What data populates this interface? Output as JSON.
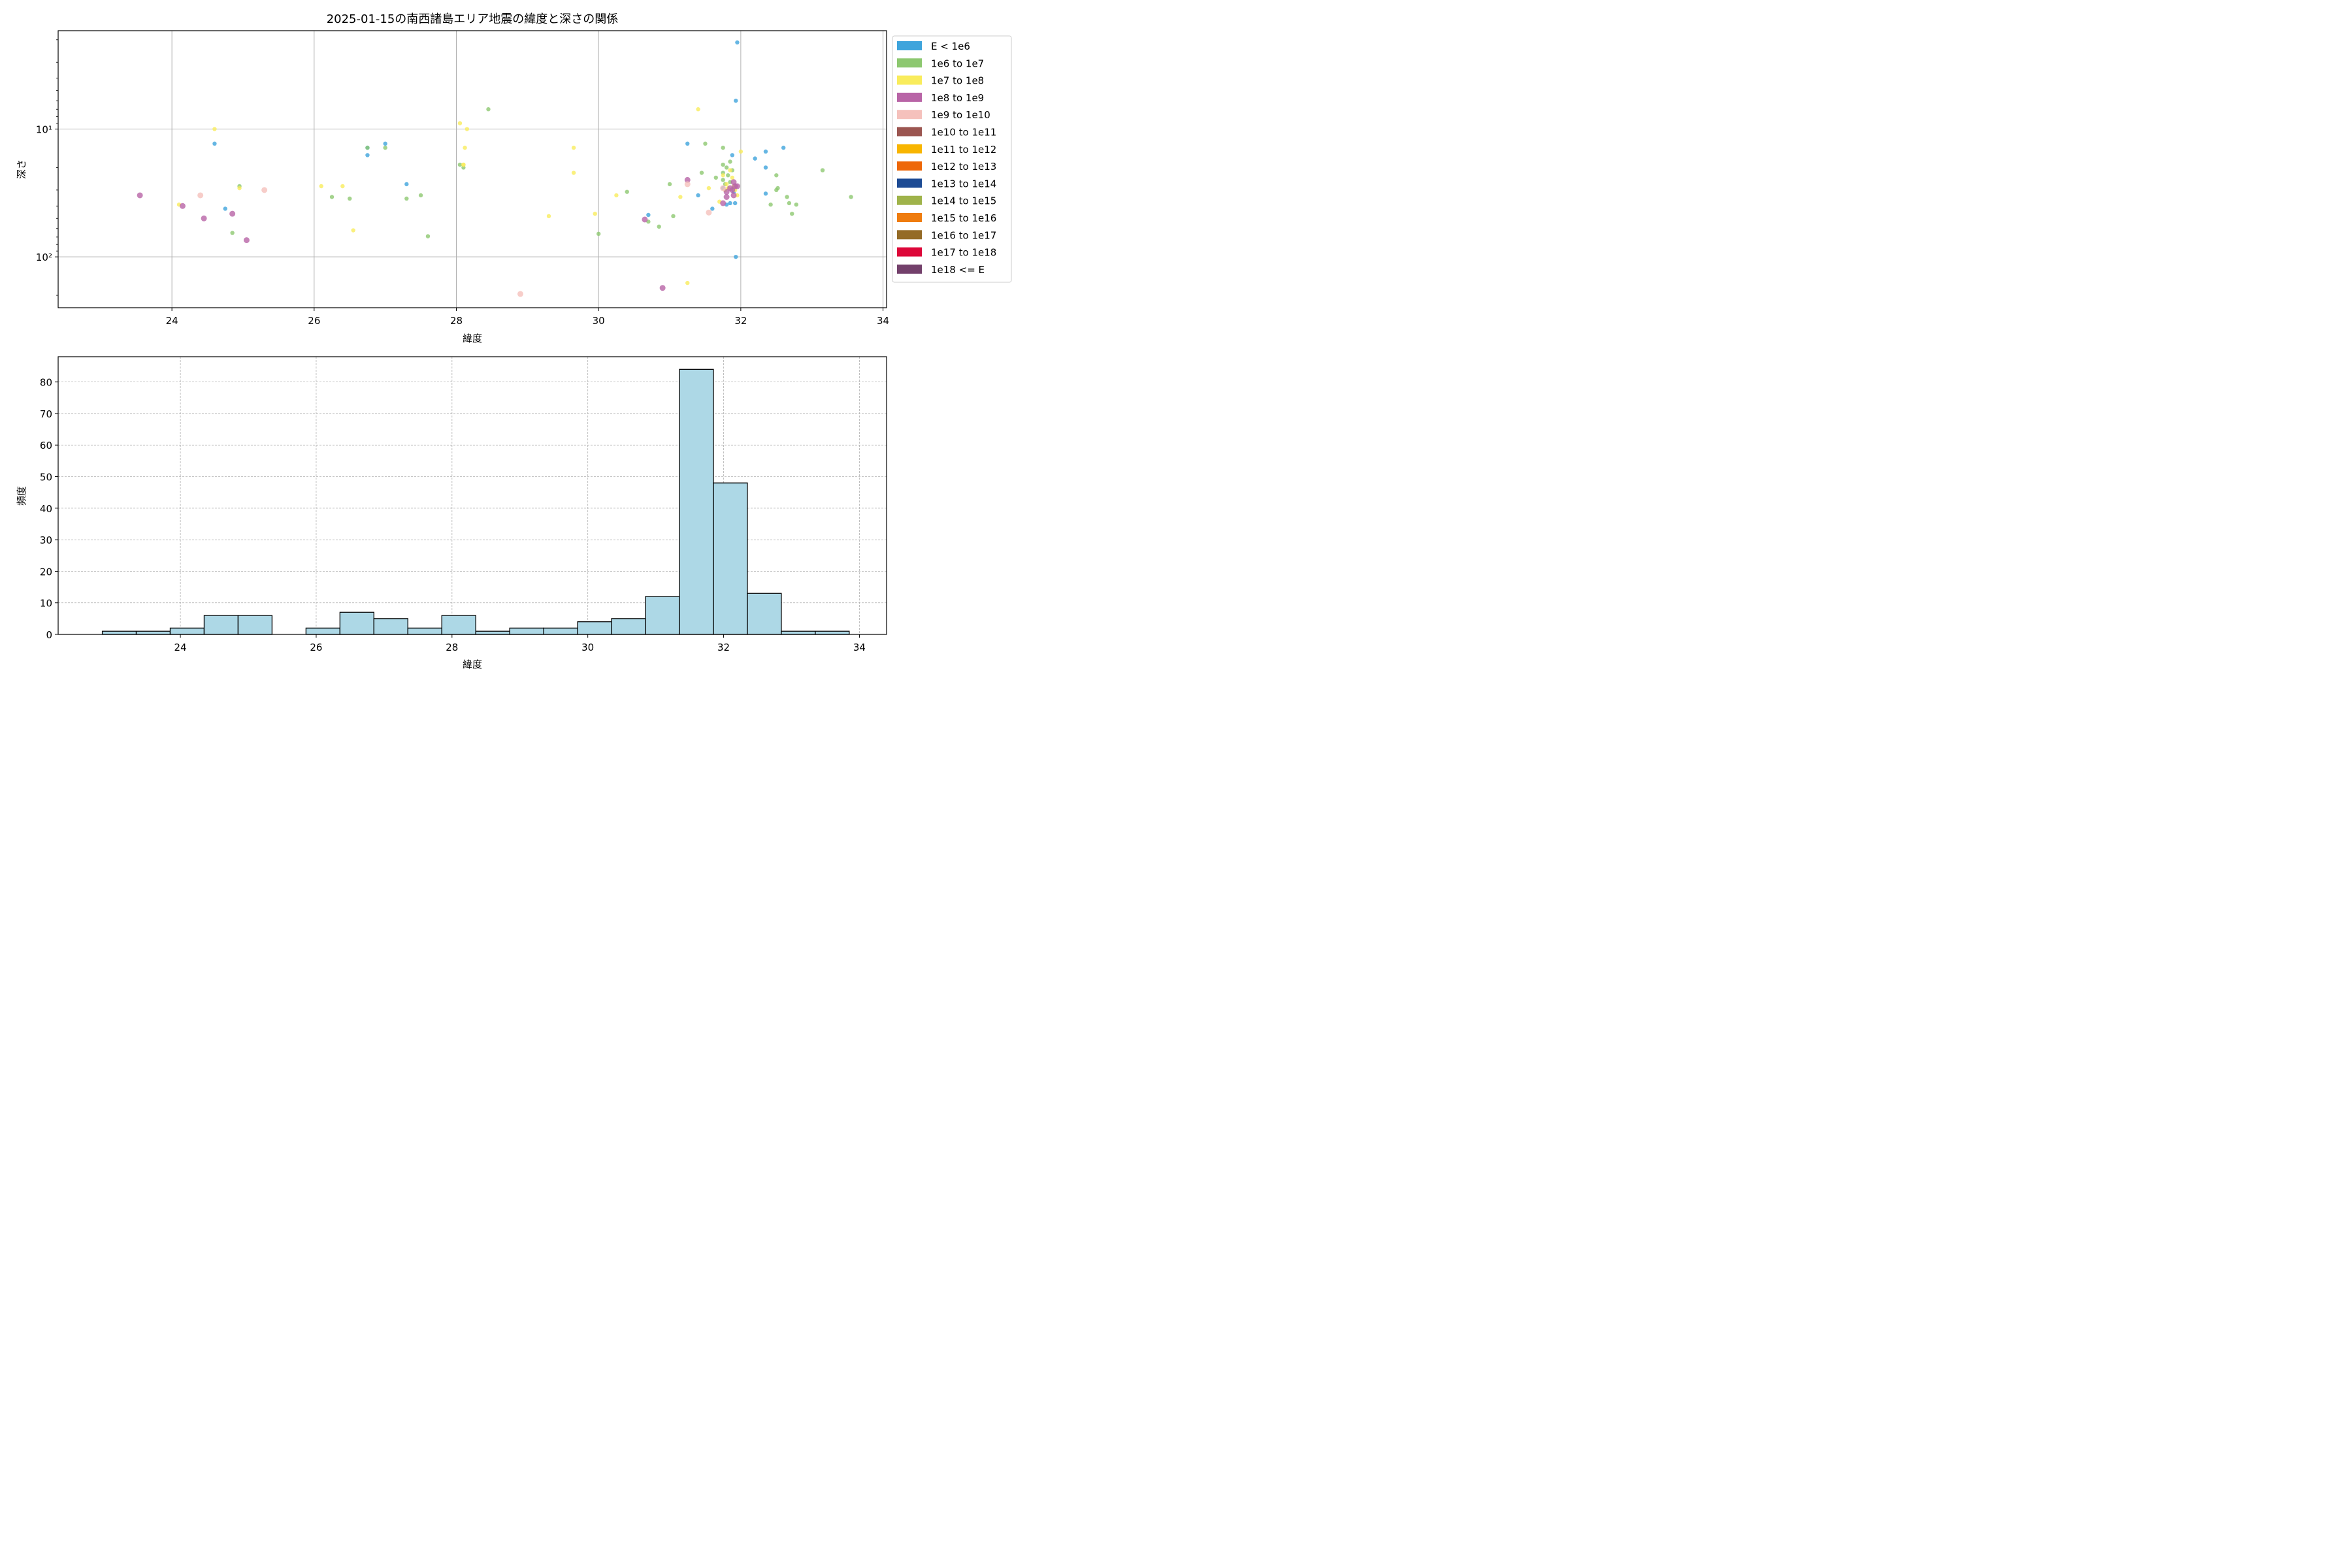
{
  "figure_title": "2025-01-15の南西諸島エリア地震の緯度と深さの関係",
  "chart_data": [
    {
      "type": "scatter",
      "title": "2025-01-15の南西諸島エリア地震の緯度と深さの関係",
      "xlabel": "緯度",
      "ylabel": "深さ",
      "xlim": [
        22.4,
        34.05
      ],
      "ylim": [
        250,
        1.7
      ],
      "y_scale": "log",
      "y_inverted": true,
      "grid": true,
      "x_ticks": [
        24,
        26,
        28,
        30,
        32,
        34
      ],
      "x_tick_labels": [
        "24",
        "26",
        "28",
        "30",
        "32",
        "34"
      ],
      "y_ticks": [
        10,
        100
      ],
      "y_tick_labels": [
        "10¹",
        "10²"
      ],
      "legend_position": "outside-right",
      "legend": [
        {
          "label": "E < 1e6",
          "color": "#3ea4dc"
        },
        {
          "label": "1e6 to 1e7",
          "color": "#8dc870"
        },
        {
          "label": "1e7 to 1e8",
          "color": "#f9ec5c"
        },
        {
          "label": "1e8 to 1e9",
          "color": "#b864a6"
        },
        {
          "label": "1e9 to 1e10",
          "color": "#f5c1bc"
        },
        {
          "label": "1e10 to 1e11",
          "color": "#9b5550"
        },
        {
          "label": "1e11 to 1e12",
          "color": "#f8b500"
        },
        {
          "label": "1e12 to 1e13",
          "color": "#ee6708"
        },
        {
          "label": "1e13 to 1e14",
          "color": "#1d4b94"
        },
        {
          "label": "1e14 to 1e15",
          "color": "#9fb34a"
        },
        {
          "label": "1e15 to 1e16",
          "color": "#ef7c0e"
        },
        {
          "label": "1e16 to 1e17",
          "color": "#946b26"
        },
        {
          "label": "1e17 to 1e18",
          "color": "#dd0739"
        },
        {
          "label": "1e18 <= E",
          "color": "#73406b"
        }
      ],
      "series": [
        {
          "name": "E < 1e6",
          "points": [
            [
              24.6,
              13
            ],
            [
              24.75,
              42
            ],
            [
              26.75,
              16
            ],
            [
              26.75,
              14
            ],
            [
              27.0,
              13
            ],
            [
              27.3,
              27
            ],
            [
              30.7,
              47
            ],
            [
              31.25,
              13
            ],
            [
              31.4,
              33
            ],
            [
              31.6,
              42
            ],
            [
              31.75,
              29
            ],
            [
              31.8,
              39
            ],
            [
              31.85,
              38
            ],
            [
              31.88,
              16
            ],
            [
              31.9,
              31
            ],
            [
              31.92,
              38
            ],
            [
              31.93,
              100
            ],
            [
              31.93,
              6
            ],
            [
              31.95,
              2.1
            ],
            [
              32.2,
              17
            ],
            [
              32.35,
              15
            ],
            [
              32.35,
              20
            ],
            [
              32.35,
              32
            ],
            [
              32.6,
              14
            ]
          ]
        },
        {
          "name": "1e6 to 1e7",
          "points": [
            [
              24.85,
              65
            ],
            [
              24.95,
              28
            ],
            [
              26.25,
              34
            ],
            [
              26.5,
              35
            ],
            [
              26.75,
              14
            ],
            [
              27.0,
              14
            ],
            [
              27.3,
              35
            ],
            [
              27.5,
              33
            ],
            [
              27.6,
              69
            ],
            [
              28.05,
              19
            ],
            [
              28.1,
              20
            ],
            [
              28.45,
              7
            ],
            [
              30.0,
              66
            ],
            [
              30.4,
              31
            ],
            [
              30.7,
              53
            ],
            [
              30.85,
              58
            ],
            [
              31.0,
              27
            ],
            [
              31.05,
              48
            ],
            [
              31.45,
              22
            ],
            [
              31.5,
              13
            ],
            [
              31.65,
              24
            ],
            [
              31.75,
              14
            ],
            [
              31.75,
              19
            ],
            [
              31.75,
              22
            ],
            [
              31.75,
              25
            ],
            [
              31.78,
              27
            ],
            [
              31.8,
              20
            ],
            [
              31.82,
              23
            ],
            [
              31.85,
              18
            ],
            [
              31.85,
              26
            ],
            [
              31.88,
              21
            ],
            [
              31.9,
              29
            ],
            [
              32.5,
              23
            ],
            [
              32.5,
              30
            ],
            [
              32.52,
              29
            ],
            [
              32.65,
              34
            ],
            [
              32.68,
              38
            ],
            [
              32.72,
              46
            ],
            [
              32.78,
              39
            ],
            [
              32.42,
              39
            ],
            [
              33.15,
              21
            ],
            [
              33.55,
              34
            ]
          ]
        },
        {
          "name": "1e7 to 1e8",
          "points": [
            [
              24.1,
              39
            ],
            [
              24.6,
              10
            ],
            [
              24.95,
              29
            ],
            [
              26.1,
              28
            ],
            [
              26.4,
              28
            ],
            [
              26.55,
              62
            ],
            [
              28.05,
              9
            ],
            [
              28.1,
              19
            ],
            [
              28.1,
              19
            ],
            [
              28.12,
              14
            ],
            [
              28.15,
              10
            ],
            [
              29.3,
              48
            ],
            [
              29.65,
              14
            ],
            [
              29.65,
              22
            ],
            [
              29.95,
              46
            ],
            [
              30.25,
              33
            ],
            [
              31.15,
              34
            ],
            [
              31.25,
              160
            ],
            [
              31.4,
              7
            ],
            [
              31.55,
              29
            ],
            [
              31.7,
              37
            ],
            [
              31.75,
              23
            ],
            [
              31.78,
              30
            ],
            [
              31.8,
              27
            ],
            [
              31.82,
              29
            ],
            [
              31.85,
              21
            ],
            [
              31.88,
              24
            ],
            [
              31.9,
              28
            ],
            [
              31.92,
              30
            ],
            [
              31.95,
              33
            ],
            [
              32.0,
              15
            ]
          ]
        },
        {
          "name": "1e8 to 1e9",
          "points": [
            [
              23.55,
              33
            ],
            [
              24.15,
              40
            ],
            [
              24.45,
              50
            ],
            [
              24.85,
              46
            ],
            [
              25.05,
              74
            ],
            [
              30.65,
              51
            ],
            [
              30.9,
              175
            ],
            [
              31.25,
              25
            ],
            [
              31.75,
              38
            ],
            [
              31.8,
              31
            ],
            [
              31.85,
              29
            ],
            [
              31.88,
              30
            ],
            [
              31.9,
              26
            ],
            [
              31.92,
              28
            ],
            [
              31.95,
              28
            ],
            [
              31.8,
              34
            ],
            [
              31.9,
              33
            ]
          ]
        },
        {
          "name": "1e9 to 1e10",
          "points": [
            [
              24.4,
              33
            ],
            [
              25.3,
              30
            ],
            [
              28.9,
              195
            ],
            [
              31.25,
              27
            ],
            [
              31.55,
              45
            ],
            [
              31.75,
              29
            ]
          ]
        }
      ]
    },
    {
      "type": "bar",
      "title": "",
      "xlabel": "緯度",
      "ylabel": "頻度",
      "xlim": [
        22.2,
        34.4
      ],
      "ylim": [
        0,
        88
      ],
      "grid": true,
      "x_ticks": [
        24,
        26,
        28,
        30,
        32,
        34
      ],
      "x_tick_labels": [
        "24",
        "26",
        "28",
        "30",
        "32",
        "34"
      ],
      "y_ticks": [
        0,
        10,
        20,
        30,
        40,
        50,
        60,
        70,
        80
      ],
      "y_tick_labels": [
        "0",
        "10",
        "20",
        "30",
        "40",
        "50",
        "60",
        "70",
        "80"
      ],
      "bar_color": "#add8e6",
      "bin_edges": [
        22.85,
        23.35,
        23.85,
        24.35,
        24.85,
        25.35,
        25.85,
        26.35,
        26.85,
        27.35,
        27.85,
        28.35,
        28.85,
        29.35,
        29.85,
        30.35,
        30.85,
        31.35,
        31.85,
        32.35,
        32.85,
        33.35,
        33.85
      ],
      "values": [
        1,
        1,
        2,
        6,
        6,
        0,
        2,
        7,
        5,
        2,
        6,
        1,
        2,
        2,
        4,
        5,
        12,
        84,
        48,
        13,
        1,
        1
      ]
    }
  ]
}
